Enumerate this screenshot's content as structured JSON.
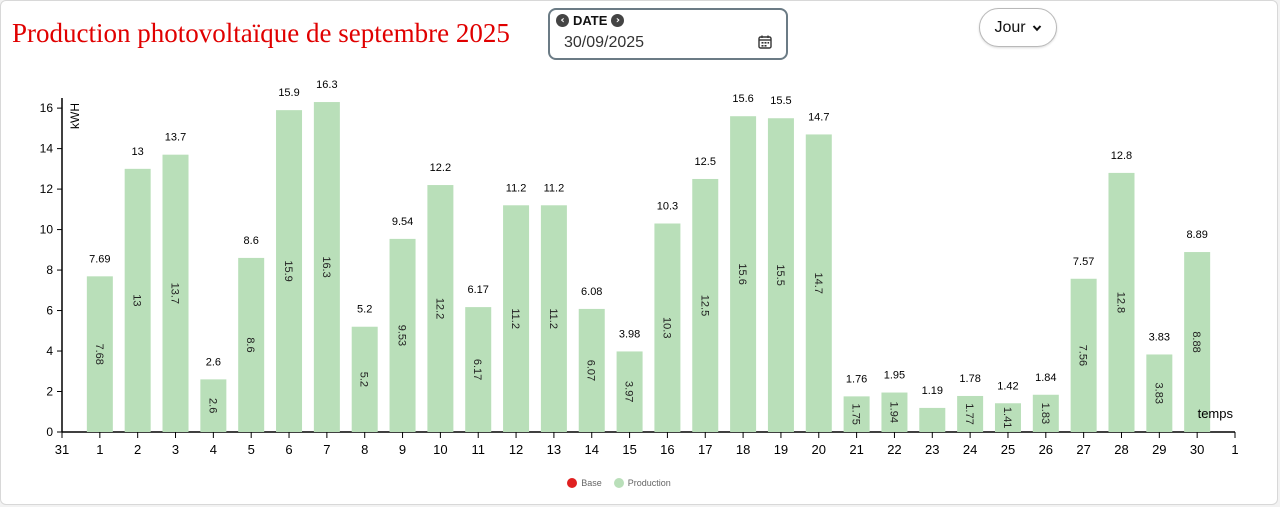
{
  "title": "Production photovoltaïque de septembre 2025",
  "date_picker": {
    "label": "DATE",
    "value": "30/09/2025",
    "prev_icon": "chevron-left-circle-icon",
    "next_icon": "chevron-right-circle-icon",
    "calendar_icon": "calendar-icon"
  },
  "period_select": {
    "value": "Jour"
  },
  "colors": {
    "title": "#e00000",
    "production": "#b9dfb9",
    "base": "#e02020"
  },
  "chart_data": {
    "type": "bar",
    "ylabel": "kWH",
    "xlabel": "temps",
    "ylim": [
      0,
      16.5
    ],
    "yticks": [
      0,
      2,
      4,
      6,
      8,
      10,
      12,
      14,
      16
    ],
    "xticks_edges": [
      "31",
      "1"
    ],
    "categories": [
      "1",
      "2",
      "3",
      "4",
      "5",
      "6",
      "7",
      "8",
      "9",
      "10",
      "11",
      "12",
      "13",
      "14",
      "15",
      "16",
      "17",
      "18",
      "19",
      "20",
      "21",
      "22",
      "23",
      "24",
      "25",
      "26",
      "27",
      "28",
      "29",
      "30"
    ],
    "series": [
      {
        "name": "Production",
        "values": [
          7.69,
          13,
          13.7,
          2.6,
          8.6,
          15.9,
          16.3,
          5.2,
          9.54,
          12.2,
          6.17,
          11.2,
          11.2,
          6.08,
          3.98,
          10.3,
          12.5,
          15.6,
          15.5,
          14.7,
          1.76,
          1.95,
          1.19,
          1.78,
          1.42,
          1.84,
          7.57,
          12.8,
          3.83,
          8.89
        ],
        "top_labels": [
          "7.69",
          "13",
          "13.7",
          "2.6",
          "8.6",
          "15.9",
          "16.3",
          "5.2",
          "9.54",
          "12.2",
          "6.17",
          "11.2",
          "11.2",
          "6.08",
          "3.98",
          "10.3",
          "12.5",
          "15.6",
          "15.5",
          "14.7",
          "1.76",
          "1.95",
          "1.19",
          "1.78",
          "1.42",
          "1.84",
          "7.57",
          "12.8",
          "3.83",
          "8.89"
        ],
        "inner_labels": [
          "7.68",
          "13",
          "13.7",
          "2.6",
          "8.6",
          "15.9",
          "16.3",
          "5.2",
          "9.53",
          "12.2",
          "6.17",
          "11.2",
          "11.2",
          "6.07",
          "3.97",
          "10.3",
          "12.5",
          "15.6",
          "15.5",
          "14.7",
          "1.75",
          "1.94",
          "",
          "1.77",
          "1.41",
          "1.83",
          "7.56",
          "12.8",
          "3.83",
          "8.88"
        ]
      }
    ],
    "legend": [
      {
        "name": "Base",
        "color": "#e02020"
      },
      {
        "name": "Production",
        "color": "#b9dfb9"
      }
    ],
    "legend_position": "bottom-center",
    "grid": false
  }
}
